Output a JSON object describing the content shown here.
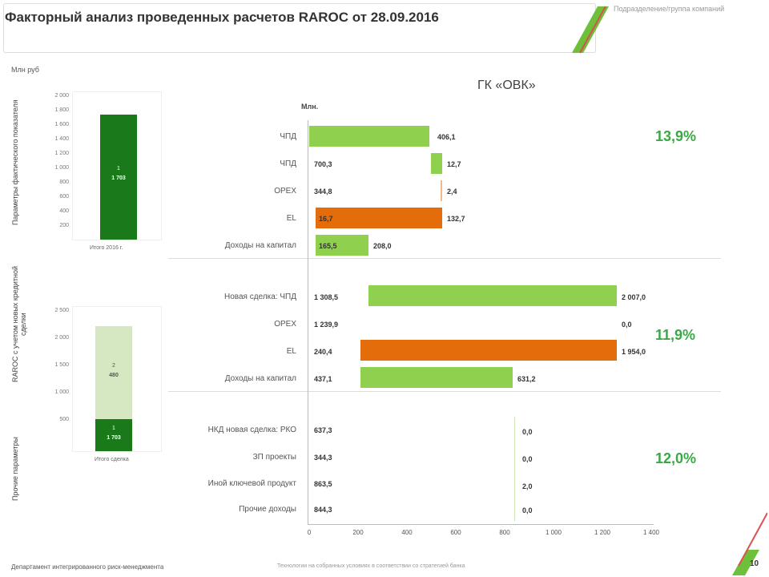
{
  "header": {
    "title": "Факторный анализ проведенных расчетов RAROC от 28.09.2016",
    "right_note": "Подразделение/группа компаний"
  },
  "units": "Млн руб",
  "group_title": "ГК «ОВК»",
  "mln_label": "Млн.",
  "side_labels": {
    "section1": "Параметры фактического показателя",
    "section2": "RAROC с учетом новых кредитной сделки",
    "section3": "Прочие параметры"
  },
  "mini1": {
    "bar_top": "1",
    "bar_val": "1 703",
    "xlabel": "Итого 2016 г.",
    "ticks": [
      "2 000",
      "1 800",
      "1 600",
      "1 400",
      "1 200",
      "1 000",
      "800",
      "600",
      "400",
      "200"
    ]
  },
  "mini2": {
    "seg_top_label": "2",
    "seg_top_val": "480",
    "seg_bot_label": "1",
    "seg_bot_val": "1 703",
    "xlabel": "Итого сделка",
    "ticks": [
      "2 500",
      "2 000",
      "1 500",
      "1 000",
      "500"
    ]
  },
  "section1": {
    "pct": "13,9%",
    "rows": [
      {
        "label": "ЧПД",
        "left": "",
        "right": "406,1"
      },
      {
        "label": "ЧПД",
        "left": "700,3",
        "right": "12,7"
      },
      {
        "label": "OPEX",
        "left": "344,8",
        "right": "2,4"
      },
      {
        "label": "EL",
        "left": "16,7",
        "right": "132,7"
      },
      {
        "label": "Доходы на капитал",
        "left": "165,5",
        "right": "208,0"
      }
    ]
  },
  "section2": {
    "pct": "11,9%",
    "rows": [
      {
        "label": "Новая сделка: ЧПД",
        "left": "1 308,5",
        "right": "2 007,0"
      },
      {
        "label": "OPEX",
        "left": "1 239,9",
        "right": "0,0"
      },
      {
        "label": "EL",
        "left": "240,4",
        "right": "1 954,0"
      },
      {
        "label": "Доходы на капитал",
        "left": "437,1",
        "right": "631,2"
      }
    ]
  },
  "section3": {
    "pct": "12,0%",
    "rows": [
      {
        "label": "НКД новая сделка: РКО",
        "left": "637,3",
        "right": "0,0"
      },
      {
        "label": "ЗП проекты",
        "left": "344,3",
        "right": "0,0"
      },
      {
        "label": "Иной ключевой продукт",
        "left": "863,5",
        "right": "2,0"
      },
      {
        "label": "Прочие доходы",
        "left": "844,3",
        "right": "0,0"
      }
    ]
  },
  "xaxis_ticks": [
    "0",
    "200",
    "400",
    "600",
    "800",
    "1 000",
    "1 200",
    "1 400"
  ],
  "footer": {
    "left": "Департамент интегрированного риск-менеджмента",
    "center": "Технологии на собранных условиях в соответствии со стратегией банка",
    "page": "10"
  }
}
